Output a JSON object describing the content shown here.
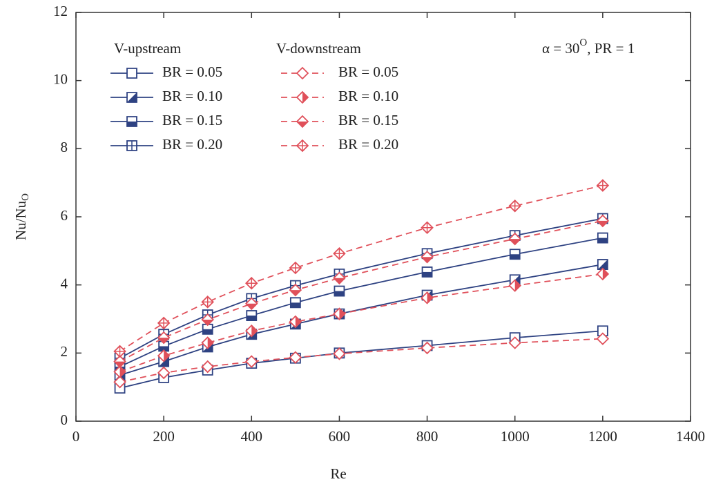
{
  "chart_data": {
    "type": "line",
    "x_label": "Re",
    "y_label": [
      "Nu/Nu",
      "O"
    ],
    "annotation": [
      "α = 30",
      "O",
      ", PR = 1"
    ],
    "x": [
      100,
      200,
      300,
      400,
      500,
      600,
      800,
      1000,
      1200
    ],
    "xlim": [
      0,
      1400
    ],
    "xticks": [
      0,
      200,
      400,
      600,
      800,
      1000,
      1200,
      1400
    ],
    "ylim": [
      0,
      12
    ],
    "yticks": [
      0,
      2,
      4,
      6,
      8,
      10,
      12
    ],
    "groups": [
      {
        "name": "V-upstream",
        "color": "#2e4282",
        "marker": "square",
        "dashed": false,
        "series": [
          {
            "name": "BR = 0.05",
            "fill": "open",
            "values": [
              0.97,
              1.28,
              1.5,
              1.7,
              1.85,
              2.0,
              2.22,
              2.45,
              2.65
            ]
          },
          {
            "name": "BR = 0.10",
            "fill": "diagonal",
            "values": [
              1.35,
              1.75,
              2.18,
              2.55,
              2.85,
              3.15,
              3.7,
              4.15,
              4.6
            ]
          },
          {
            "name": "BR = 0.15",
            "fill": "half",
            "values": [
              1.6,
              2.2,
              2.7,
              3.1,
              3.48,
              3.82,
              4.38,
              4.9,
              5.38
            ]
          },
          {
            "name": "BR = 0.20",
            "fill": "cross",
            "values": [
              1.85,
              2.55,
              3.12,
              3.6,
              3.98,
              4.32,
              4.92,
              5.45,
              5.95
            ]
          }
        ]
      },
      {
        "name": "V-downstream",
        "color": "#e0505a",
        "marker": "diamond",
        "dashed": true,
        "series": [
          {
            "name": "BR = 0.05",
            "fill": "open",
            "values": [
              1.15,
              1.42,
              1.6,
              1.75,
              1.87,
              1.98,
              2.15,
              2.3,
              2.42
            ]
          },
          {
            "name": "BR = 0.10",
            "fill": "diagonal",
            "values": [
              1.45,
              1.92,
              2.3,
              2.65,
              2.92,
              3.15,
              3.62,
              3.98,
              4.32
            ]
          },
          {
            "name": "BR = 0.15",
            "fill": "half",
            "values": [
              1.75,
              2.45,
              2.98,
              3.45,
              3.85,
              4.2,
              4.82,
              5.35,
              5.88
            ]
          },
          {
            "name": "BR = 0.20",
            "fill": "cross",
            "values": [
              2.05,
              2.88,
              3.5,
              4.05,
              4.5,
              4.92,
              5.68,
              6.32,
              6.92
            ]
          }
        ]
      }
    ]
  }
}
